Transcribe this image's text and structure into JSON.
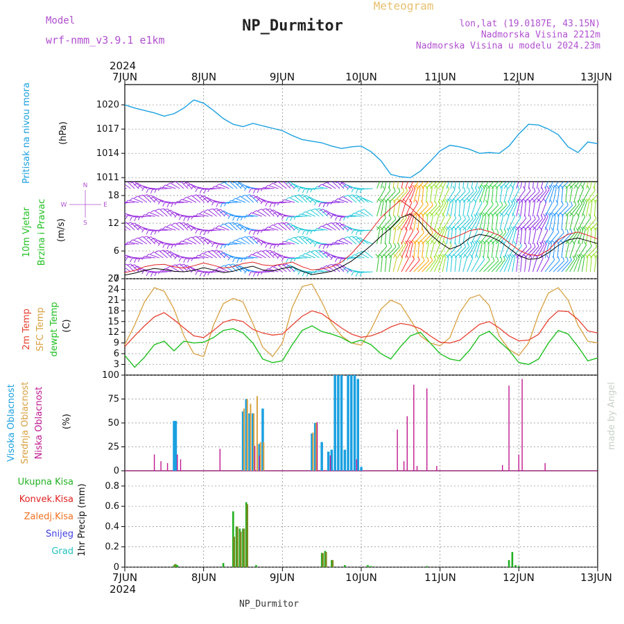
{
  "header": {
    "model_label": "Model",
    "model_name": "wrf-nmm_v3.9.1  e1km",
    "station": "NP_Durmitor",
    "product": "Meteogram",
    "lonlat": "lon,lat (19.0187E, 43.15N)",
    "elevation": "Nadmorska Visina 2212m",
    "model_elevation": "Nadmorska Visina u modelu 2024.23m",
    "footer_station": "NP_Durmitor",
    "credit": "made by Angel"
  },
  "colors": {
    "pressure": "#1aa0e0",
    "wind_avg": "#000000",
    "wind_gust": "#e02020",
    "t2m": "#e84030",
    "tsfc": "#d8a040",
    "tdew": "#20c020",
    "cloud_high": "#1aa0e0",
    "cloud_mid": "#d8a040",
    "cloud_low": "#c01890",
    "precip_total": "#20b020",
    "precip_conv": "#e02020",
    "precip_strat": "#f07020",
    "snow": "#4040e0",
    "hail": "#20c0c0",
    "violet_text": "#b050d0",
    "title_gold": "#e8c070"
  },
  "chart_data": [
    {
      "type": "line",
      "panel": "pressure",
      "ylabel_main": "Pritisak na nivou mora",
      "unit": "(hPa)",
      "ylim": [
        1010.5,
        1022.5
      ],
      "yticks": [
        1011,
        1014,
        1017,
        1020
      ],
      "x_hours": [
        0,
        3,
        6,
        9,
        12,
        15,
        18,
        21,
        24,
        27,
        30,
        33,
        36,
        39,
        42,
        45,
        48,
        51,
        54,
        57,
        60,
        63,
        66,
        69,
        72,
        75,
        78,
        81,
        84,
        87,
        90,
        93,
        96,
        99,
        102,
        105,
        108,
        111,
        114,
        117,
        120,
        123,
        126,
        129,
        132,
        135,
        138,
        141,
        144
      ],
      "values": [
        1020.0,
        1019.6,
        1019.3,
        1019.0,
        1018.6,
        1018.9,
        1019.6,
        1020.6,
        1020.2,
        1019.3,
        1018.3,
        1017.6,
        1017.3,
        1017.7,
        1017.4,
        1017.1,
        1016.8,
        1016.2,
        1015.7,
        1015.5,
        1015.3,
        1014.9,
        1014.6,
        1014.8,
        1014.9,
        1014.2,
        1013.1,
        1011.4,
        1011.1,
        1011.0,
        1011.8,
        1013.0,
        1014.3,
        1015.0,
        1014.8,
        1014.5,
        1014.0,
        1014.1,
        1014.0,
        1014.9,
        1016.4,
        1017.6,
        1017.5,
        1017.0,
        1016.3,
        1014.8,
        1014.1,
        1015.4,
        1015.2
      ]
    },
    {
      "type": "line",
      "panel": "wind",
      "ylabel_main": "10m Vjetar",
      "ylabel_sub": "Brzina i Pravac",
      "unit": "(m/s)",
      "compass": [
        "N",
        "E",
        "S",
        "W"
      ],
      "ylim": [
        0,
        21
      ],
      "yticks": [
        0,
        6,
        12,
        18
      ],
      "x_hours": [
        0,
        3,
        6,
        9,
        12,
        15,
        18,
        21,
        24,
        27,
        30,
        33,
        36,
        39,
        42,
        45,
        48,
        51,
        54,
        57,
        60,
        63,
        66,
        69,
        72,
        75,
        78,
        81,
        84,
        87,
        90,
        93,
        96,
        99,
        102,
        105,
        108,
        111,
        114,
        117,
        120,
        123,
        126,
        129,
        132,
        135,
        138,
        141,
        144
      ],
      "series": [
        {
          "name": "avg",
          "values": [
            0.8,
            1.2,
            1.8,
            2.2,
            2.0,
            1.6,
            1.5,
            1.8,
            2.4,
            1.9,
            1.3,
            1.6,
            2.3,
            2.7,
            1.9,
            1.7,
            2.2,
            2.6,
            1.6,
            0.9,
            1.2,
            1.6,
            2.6,
            3.8,
            5.4,
            7.2,
            9.2,
            11.0,
            13.2,
            14.0,
            12.2,
            9.6,
            7.8,
            6.4,
            7.2,
            8.8,
            9.6,
            9.2,
            8.2,
            6.6,
            5.0,
            4.2,
            4.4,
            5.6,
            7.2,
            8.4,
            8.8,
            8.2,
            7.6
          ]
        },
        {
          "name": "gust",
          "values": [
            1.3,
            1.8,
            2.6,
            3.0,
            3.1,
            2.6,
            2.3,
            2.8,
            3.4,
            2.9,
            2.3,
            2.6,
            3.3,
            3.6,
            3.0,
            2.8,
            3.2,
            3.6,
            2.6,
            1.9,
            2.1,
            2.6,
            3.6,
            5.4,
            7.8,
            10.5,
            13.2,
            15.2,
            17.0,
            15.4,
            13.3,
            11.2,
            9.4,
            8.6,
            9.4,
            10.4,
            10.8,
            10.2,
            9.4,
            7.8,
            6.2,
            5.2,
            5.0,
            6.2,
            8.4,
            9.6,
            10.1,
            9.4,
            8.6
          ]
        }
      ],
      "barb_colors": [
        [
          0,
          "#9b30e0"
        ],
        [
          33,
          "#1e90ff"
        ],
        [
          41,
          "#9b30e0"
        ],
        [
          52,
          "#1ec8d8"
        ],
        [
          63,
          "#8a2be2"
        ],
        [
          70,
          "#1ec8d8"
        ],
        [
          76,
          "#30c030"
        ],
        [
          81,
          "#c8c820"
        ],
        [
          84,
          "#ff3030"
        ],
        [
          88,
          "#ffa500"
        ],
        [
          91,
          "#90e020"
        ],
        [
          98,
          "#1ec8d8"
        ],
        [
          107,
          "#30d040"
        ],
        [
          114,
          "#1ec8d8"
        ],
        [
          119,
          "#8a2be2"
        ],
        [
          128,
          "#1e90ff"
        ],
        [
          134,
          "#30c030"
        ],
        [
          140,
          "#90e020"
        ],
        [
          144,
          "#90e020"
        ]
      ]
    },
    {
      "type": "line",
      "panel": "temperature",
      "series_labels": [
        "2m Temp",
        "SFC Temp",
        "dewpt Temp"
      ],
      "unit": "(C)",
      "ylim": [
        0,
        27
      ],
      "yticks": [
        3,
        6,
        9,
        12,
        15,
        18,
        21,
        24,
        27
      ],
      "x_hours": [
        0,
        3,
        6,
        9,
        12,
        15,
        18,
        21,
        24,
        27,
        30,
        33,
        36,
        39,
        42,
        45,
        48,
        51,
        54,
        57,
        60,
        63,
        66,
        69,
        72,
        75,
        78,
        81,
        84,
        87,
        90,
        93,
        96,
        99,
        102,
        105,
        108,
        111,
        114,
        117,
        120,
        123,
        126,
        129,
        132,
        135,
        138,
        141,
        144
      ],
      "series": [
        {
          "name": "2m Temp",
          "values": [
            8.0,
            11.0,
            13.8,
            16.3,
            17.5,
            15.5,
            13.2,
            11.0,
            10.5,
            12.5,
            14.8,
            15.6,
            15.0,
            12.8,
            11.8,
            11.2,
            11.5,
            14.0,
            16.5,
            18.0,
            17.2,
            15.2,
            13.2,
            11.5,
            10.6,
            11.0,
            12.0,
            13.5,
            14.5,
            14.0,
            13.0,
            11.0,
            9.2,
            9.0,
            9.8,
            12.0,
            14.2,
            15.0,
            13.2,
            11.0,
            9.6,
            9.8,
            11.4,
            15.5,
            18.0,
            17.8,
            15.6,
            12.4,
            11.8
          ]
        },
        {
          "name": "SFC Temp",
          "values": [
            8.5,
            14.0,
            20.5,
            24.5,
            23.5,
            18.5,
            11.0,
            6.0,
            5.2,
            14.0,
            20.0,
            21.5,
            20.5,
            14.5,
            7.8,
            5.2,
            9.0,
            19.0,
            24.8,
            25.5,
            20.5,
            14.5,
            11.0,
            9.0,
            8.4,
            12.8,
            18.5,
            21.0,
            19.8,
            15.5,
            11.0,
            9.0,
            8.2,
            10.5,
            17.5,
            21.5,
            22.5,
            19.5,
            11.0,
            7.2,
            5.5,
            9.0,
            17.0,
            23.0,
            24.5,
            21.0,
            14.0,
            9.5,
            9.0
          ]
        },
        {
          "name": "dewpt Temp",
          "values": [
            5.5,
            2.2,
            5.0,
            8.5,
            9.5,
            6.8,
            9.5,
            9.0,
            9.2,
            10.5,
            12.5,
            13.0,
            11.8,
            9.0,
            4.5,
            3.5,
            4.0,
            8.5,
            12.5,
            13.8,
            12.2,
            11.5,
            10.5,
            9.0,
            9.8,
            8.5,
            6.0,
            4.5,
            8.0,
            11.0,
            12.0,
            9.0,
            6.0,
            4.5,
            4.0,
            7.0,
            11.0,
            12.3,
            9.5,
            7.0,
            3.5,
            3.0,
            4.5,
            9.0,
            12.5,
            11.5,
            8.0,
            4.0,
            4.8
          ]
        }
      ]
    },
    {
      "type": "bar",
      "panel": "clouds",
      "series_labels": [
        "Visoka Oblacnost",
        "Srednja Oblacnost",
        "Niska Oblacnost"
      ],
      "unit": "(%)",
      "ylim": [
        0,
        100
      ],
      "yticks": [
        0,
        25,
        50,
        75,
        100
      ],
      "series": [
        {
          "name": "Visoka Oblacnost",
          "x": [
            15.0,
            15.25,
            15.5,
            36.0,
            37.0,
            38.0,
            39.0,
            41.0,
            42.0,
            57.0,
            58.0,
            60.0,
            62.0,
            63.0,
            64.0,
            65.0,
            66.0,
            67.0,
            68.0,
            69.0,
            70.0,
            71.0,
            72.0
          ],
          "values": [
            52,
            52,
            52,
            62,
            75,
            60,
            60,
            28,
            65,
            39,
            50,
            30,
            20,
            22,
            100,
            100,
            100,
            22,
            100,
            100,
            100,
            96,
            4
          ]
        },
        {
          "name": "Srednja Oblacnost",
          "x": [
            36.3,
            37.3,
            38.3,
            39.3,
            40.3,
            41.3,
            42.3,
            57.3,
            58.3
          ],
          "values": [
            65,
            75,
            70,
            60,
            78,
            30,
            30,
            40,
            50
          ]
        },
        {
          "name": "Niska Oblacnost",
          "x": [
            9.0,
            11.0,
            13.0,
            16.0,
            17.0,
            29.0,
            39.6,
            41.0,
            58.6,
            62.6,
            70.6,
            83.0,
            85.0,
            86.0,
            88.0,
            89.0,
            92.0,
            95.0,
            115.0,
            117.0,
            120.0,
            121.0,
            128.0
          ],
          "values": [
            17,
            10,
            8,
            17,
            12,
            23,
            26,
            16,
            51,
            16,
            12,
            43,
            10,
            57,
            90,
            5,
            86,
            5,
            6,
            89,
            17,
            96,
            8
          ]
        }
      ]
    },
    {
      "type": "bar",
      "panel": "precip",
      "series_labels": [
        "Ukupna Kisa",
        "Konvek.Kisa",
        "Zaledj.Kisa",
        "Snijeg",
        "Grad"
      ],
      "ylabel_main": "1hr Precip (mm)",
      "ylim": [
        0,
        0.95
      ],
      "yticks": [
        0,
        0.2,
        0.4,
        0.6,
        0.8
      ],
      "series": [
        {
          "name": "Ukupna Kisa",
          "x": [
            15.0,
            15.5,
            16.0,
            30.0,
            33.0,
            34.0,
            35.0,
            36.0,
            37.0,
            40.0,
            60.0,
            61.0,
            63.0,
            67.0,
            74.0,
            75.0,
            92.0,
            117.0,
            118.0,
            119.0,
            120.0
          ],
          "values": [
            0.02,
            0.03,
            0.02,
            0.04,
            0.55,
            0.4,
            0.38,
            0.38,
            0.64,
            0.02,
            0.14,
            0.16,
            0.07,
            0.02,
            0.02,
            0.01,
            0.01,
            0.07,
            0.15,
            0.02,
            0.01
          ]
        },
        {
          "name": "Zaledj.Kisa",
          "x": [
            15.3,
            33.3,
            34.3,
            35.3,
            36.3,
            37.3,
            60.3,
            61.3,
            63.3
          ],
          "values": [
            0.03,
            0.3,
            0.4,
            0.35,
            0.38,
            0.62,
            0.14,
            0.15,
            0.07
          ]
        }
      ]
    },
    {
      "type": "line",
      "panel": "time-axis",
      "x_tick_labels": [
        "7JUN",
        "8JUN",
        "9JUN",
        "10JUN",
        "11JUN",
        "12JUN",
        "13JUN"
      ],
      "year_label": "2024"
    }
  ]
}
